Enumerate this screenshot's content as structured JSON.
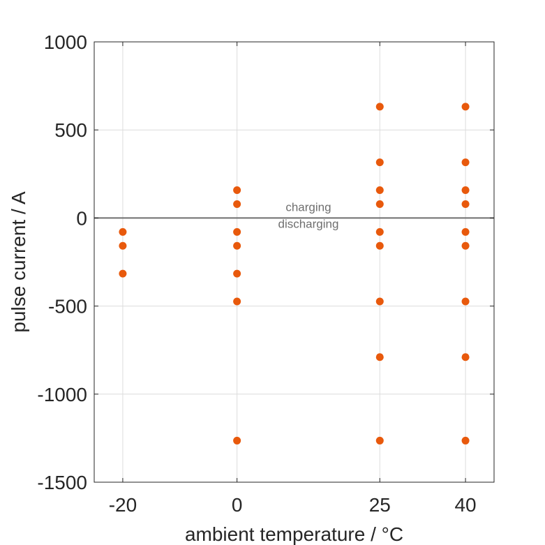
{
  "chart_data": {
    "type": "scatter",
    "title": "",
    "xlabel": "ambient temperature / °C",
    "ylabel": "pulse current / A",
    "xlim": [
      -25,
      45
    ],
    "ylim": [
      -1500,
      1000
    ],
    "xticks": [
      -20,
      0,
      25,
      40
    ],
    "xtick_labels": [
      "-20",
      "0",
      "25",
      "40"
    ],
    "yticks": [
      1000,
      500,
      0,
      -500,
      -1000,
      -1500
    ],
    "ytick_labels": [
      "1000",
      "500",
      "0",
      "-500",
      "-1000",
      "-1500"
    ],
    "grid": true,
    "zero_line": true,
    "annotations": [
      {
        "text": "charging",
        "x": 12.5,
        "y": 40
      },
      {
        "text": "discharging",
        "x": 12.5,
        "y": -55
      }
    ],
    "series": [
      {
        "color": "#E8590C",
        "points": [
          {
            "x": -20,
            "y": -79
          },
          {
            "x": -20,
            "y": -158
          },
          {
            "x": -20,
            "y": -316
          },
          {
            "x": 0,
            "y": 158
          },
          {
            "x": 0,
            "y": 79
          },
          {
            "x": 0,
            "y": -79
          },
          {
            "x": 0,
            "y": -158
          },
          {
            "x": 0,
            "y": -316
          },
          {
            "x": 0,
            "y": -474
          },
          {
            "x": 0,
            "y": -1264
          },
          {
            "x": 25,
            "y": 632
          },
          {
            "x": 25,
            "y": 316
          },
          {
            "x": 25,
            "y": 158
          },
          {
            "x": 25,
            "y": 79
          },
          {
            "x": 25,
            "y": -79
          },
          {
            "x": 25,
            "y": -158
          },
          {
            "x": 25,
            "y": -474
          },
          {
            "x": 25,
            "y": -790
          },
          {
            "x": 25,
            "y": -1264
          },
          {
            "x": 40,
            "y": 632
          },
          {
            "x": 40,
            "y": 316
          },
          {
            "x": 40,
            "y": 158
          },
          {
            "x": 40,
            "y": 79
          },
          {
            "x": 40,
            "y": -79
          },
          {
            "x": 40,
            "y": -158
          },
          {
            "x": 40,
            "y": -474
          },
          {
            "x": 40,
            "y": -790
          },
          {
            "x": 40,
            "y": -1264
          }
        ]
      }
    ]
  }
}
